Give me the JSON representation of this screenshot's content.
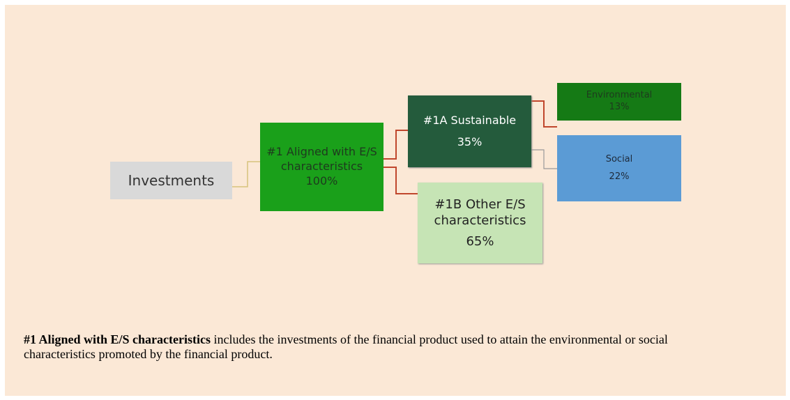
{
  "nodes": [
    {
      "label": "Investments"
    },
    {
      "label": "#1 Aligned with E/S characteristics",
      "value": "100%"
    },
    {
      "label": "#1A Sustainable",
      "value": "35%"
    },
    {
      "label": "#1B Other E/S characteristics",
      "value": "65%"
    },
    {
      "label": "Environmental",
      "value": "13%"
    },
    {
      "label": "Social",
      "value": "22%"
    }
  ],
  "footnote": {
    "term": "#1 Aligned with E/S characteristics",
    "text": " includes the investments of the financial product used to attain the environmental or social characteristics promoted by the financial product."
  }
}
